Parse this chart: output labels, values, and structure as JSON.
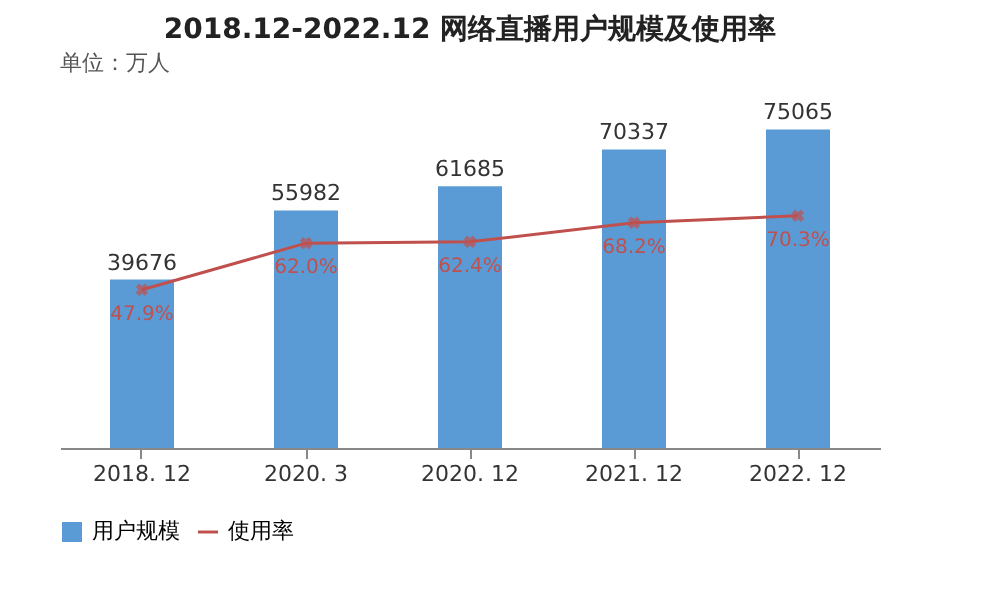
{
  "chart_data": {
    "type": "bar",
    "title": "2018.12-2022.12 网络直播用户规模及使用率",
    "annotations": [
      "单位：万人"
    ],
    "categories": [
      "2018. 12",
      "2020. 3",
      "2020. 12",
      "2021. 12",
      "2022. 12"
    ],
    "series": [
      {
        "name": "用户规模",
        "color": "#5b9bd5",
        "values": [
          39676,
          55982,
          61685,
          70337,
          75065
        ]
      },
      {
        "name": "使用率",
        "type": "line",
        "axis": "y2",
        "color": "#c0504d",
        "marker": "cross",
        "values": [
          47.9,
          62.0,
          62.4,
          68.2,
          70.3
        ],
        "value_labels": [
          "47.9%",
          "62.0%",
          "62.4%",
          "68.2%",
          "70.3%"
        ]
      }
    ],
    "data_labels": true,
    "legend": "bottom",
    "grid": false
  }
}
